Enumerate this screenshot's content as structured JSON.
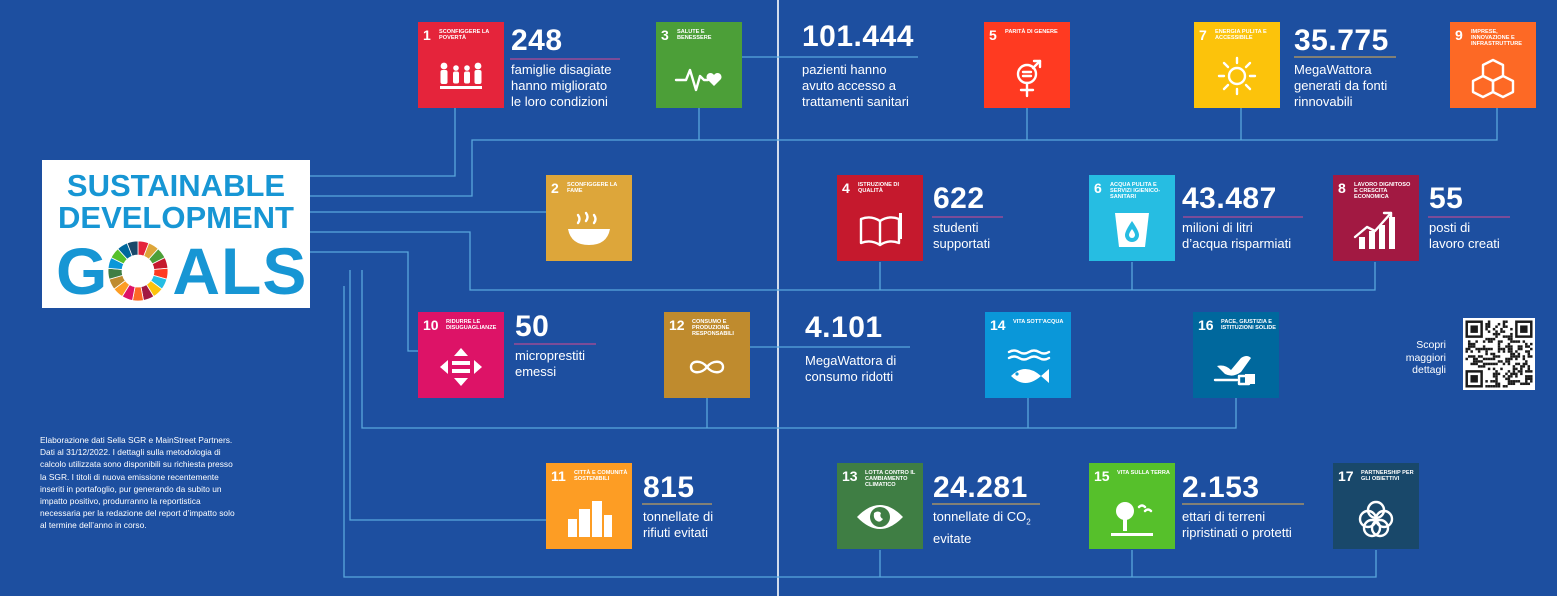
{
  "logo": {
    "line1": "SUSTAINABLE",
    "line2": "DEVELOPMENT",
    "line3_start": "G",
    "line3_end": "ALS"
  },
  "colors": {
    "background": "#1d4fa0",
    "line": "#5aa7dc",
    "logo_text": "#1796d4"
  },
  "goals": [
    {
      "id": "g1",
      "number": "1",
      "name": "SCONFIGGERE LA POVERTÀ",
      "color": "#e5243b",
      "icon": "family-icon"
    },
    {
      "id": "g2",
      "number": "2",
      "name": "SCONFIGGERE LA FAME",
      "color": "#dda63a",
      "icon": "bowl-icon"
    },
    {
      "id": "g3",
      "number": "3",
      "name": "SALUTE E BENESSERE",
      "color": "#4c9f38",
      "icon": "heartbeat-icon"
    },
    {
      "id": "g4",
      "number": "4",
      "name": "ISTRUZIONE DI QUALITÀ",
      "color": "#c5192d",
      "icon": "book-icon"
    },
    {
      "id": "g5",
      "number": "5",
      "name": "PARITÀ DI GENERE",
      "color": "#ff3a21",
      "icon": "gender-icon"
    },
    {
      "id": "g6",
      "number": "6",
      "name": "ACQUA PULITA E SERVIZI IGIENICO-SANITARI",
      "color": "#26bde2",
      "icon": "water-icon"
    },
    {
      "id": "g7",
      "number": "7",
      "name": "ENERGIA PULITA E ACCESSIBILE",
      "color": "#fcc30b",
      "icon": "sun-icon"
    },
    {
      "id": "g8",
      "number": "8",
      "name": "LAVORO DIGNITOSO E CRESCITA ECONOMICA",
      "color": "#a21942",
      "icon": "growth-chart-icon"
    },
    {
      "id": "g9",
      "number": "9",
      "name": "IMPRESE, INNOVAZIONE E INFRASTRUTTURE",
      "color": "#fd6925",
      "icon": "cubes-icon"
    },
    {
      "id": "g10",
      "number": "10",
      "name": "RIDURRE LE DISUGUAGLIANZE",
      "color": "#dd1367",
      "icon": "equality-icon"
    },
    {
      "id": "g11",
      "number": "11",
      "name": "CITTÀ E COMUNITÀ SOSTENIBILI",
      "color": "#fd9d24",
      "icon": "city-icon"
    },
    {
      "id": "g12",
      "number": "12",
      "name": "CONSUMO E PRODUZIONE RESPONSABILI",
      "color": "#bf8b2e",
      "icon": "infinity-icon"
    },
    {
      "id": "g13",
      "number": "13",
      "name": "LOTTA CONTRO IL CAMBIAMENTO CLIMATICO",
      "color": "#3f7e44",
      "icon": "eye-globe-icon"
    },
    {
      "id": "g14",
      "number": "14",
      "name": "VITA SOTT'ACQUA",
      "color": "#0a97d9",
      "icon": "fish-icon"
    },
    {
      "id": "g15",
      "number": "15",
      "name": "VITA SULLA TERRA",
      "color": "#56c02b",
      "icon": "tree-icon"
    },
    {
      "id": "g16",
      "number": "16",
      "name": "PACE, GIUSTIZIA E ISTITUZIONI SOLIDE",
      "color": "#00689d",
      "icon": "dove-icon"
    },
    {
      "id": "g17",
      "number": "17",
      "name": "PARTNERSHIP PER GLI OBIETTIVI",
      "color": "#19486a",
      "icon": "rings-icon"
    }
  ],
  "stats": [
    {
      "goal": "1",
      "value": "248",
      "desc": [
        "famiglie disagiate",
        "hanno migliorato",
        "le loro condizioni"
      ]
    },
    {
      "goal": "3",
      "value": "101.444",
      "desc": [
        "pazienti hanno",
        "avuto accesso a",
        "trattamenti sanitari"
      ]
    },
    {
      "goal": "7",
      "value": "35.775",
      "desc": [
        "MegaWattora",
        "generati da fonti",
        "rinnovabili"
      ]
    },
    {
      "goal": "4",
      "value": "622",
      "desc": [
        "studenti",
        "supportati"
      ]
    },
    {
      "goal": "6",
      "value": "43.487",
      "desc": [
        "milioni di litri",
        "d’acqua risparmiati"
      ]
    },
    {
      "goal": "8",
      "value": "55",
      "desc": [
        "posti di",
        "lavoro creati"
      ]
    },
    {
      "goal": "10",
      "value": "50",
      "desc": [
        "microprestiti",
        "emessi"
      ]
    },
    {
      "goal": "12",
      "value": "4.101",
      "desc": [
        "MegaWattora di",
        "consumo ridotti"
      ]
    },
    {
      "goal": "11",
      "value": "815",
      "desc": [
        "tonnellate di",
        "rifiuti evitati"
      ]
    },
    {
      "goal": "13",
      "value": "24.281",
      "desc": [
        "tonnellate di CO",
        "evitate"
      ],
      "subscript": "2"
    },
    {
      "goal": "15",
      "value": "2.153",
      "desc": [
        "ettari di terreni",
        "ripristinati o protetti"
      ]
    }
  ],
  "footnote": "Elaborazione dati Sella SGR e MainStreet Partners. Dati al 31/12/2022. I dettagli sulla metodologia di calcolo utilizzata sono disponibili su richiesta presso la SGR. I titoli di nuova emissione recentemente inseriti in portafoglio, pur generando da subito un impatto positivo, produrranno la reportistica necessaria per la redazione del report d’impatto solo al termine dell’anno in corso.",
  "qr": {
    "text_lines": [
      "Scopri",
      "maggiori",
      "dettagli"
    ],
    "icon": "qr-code-icon"
  }
}
